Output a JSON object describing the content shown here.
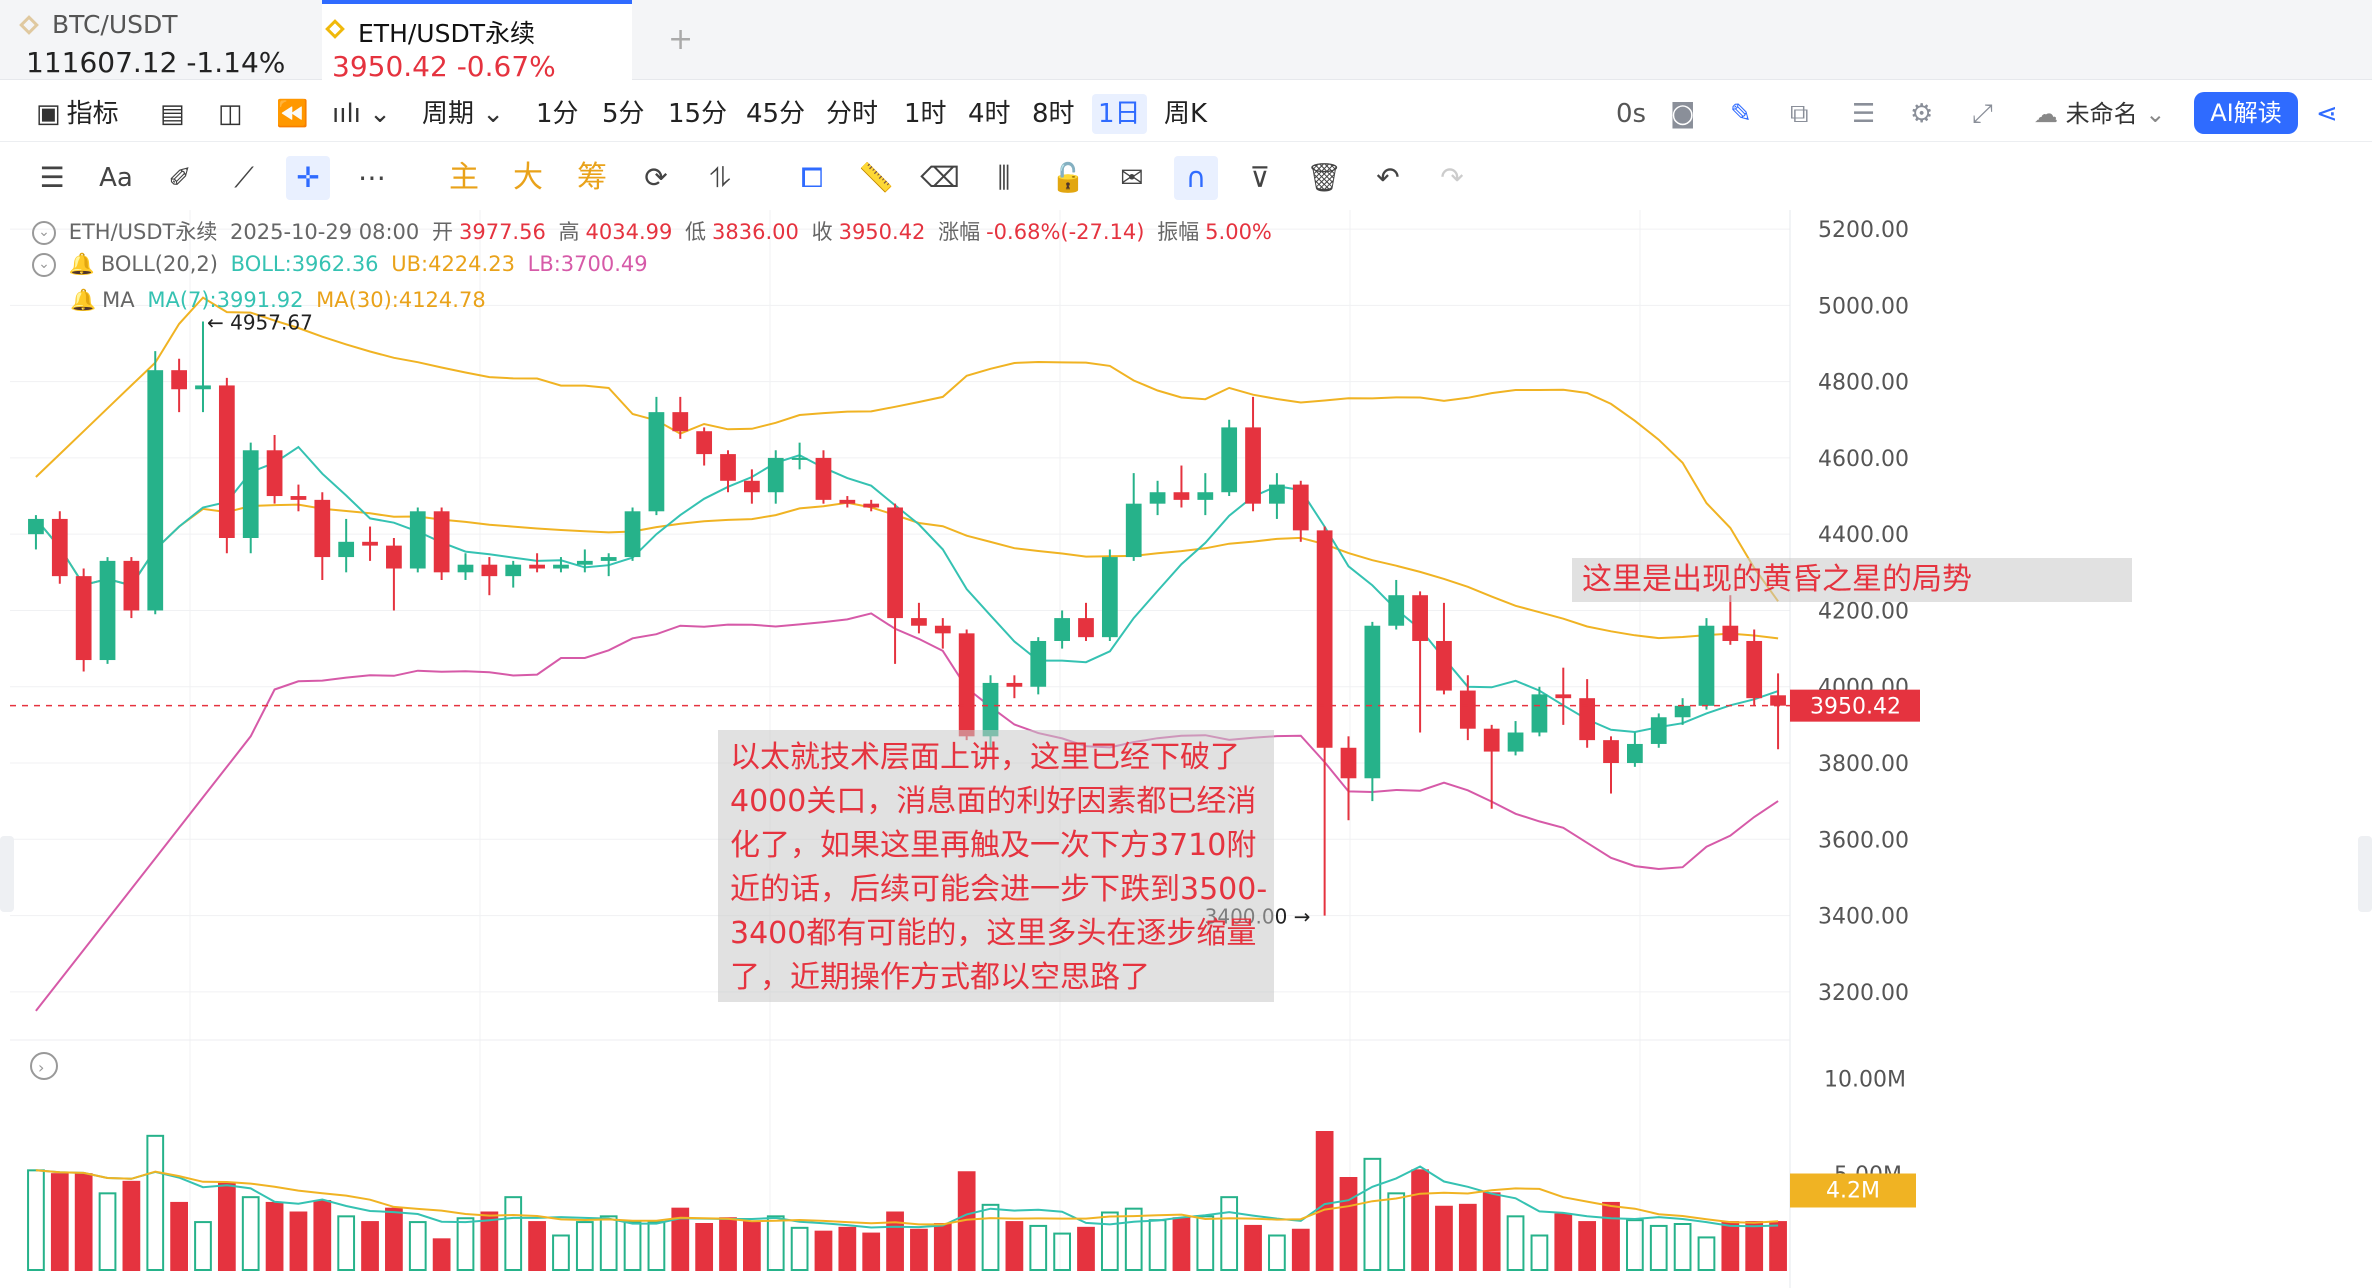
{
  "tabs": [
    {
      "symbol": "BTC/USDT",
      "price": "111607.12",
      "change": "-1.14%"
    },
    {
      "symbol": "ETH/USDT永续",
      "price": "3950.42",
      "change": "-0.67%"
    }
  ],
  "toolbar": {
    "indicators": "指标",
    "period": "周期",
    "intervals": [
      "1分",
      "5分",
      "15分",
      "45分",
      "分时",
      "1时",
      "4时",
      "8时",
      "1日",
      "周K"
    ],
    "active_interval": "1日",
    "countdown": "0s",
    "layout_name": "未命名",
    "ai_button": "AI解读"
  },
  "drawing_tools": {
    "main": "主",
    "big": "大",
    "chips": "筹"
  },
  "ohlc": {
    "symbol": "ETH/USDT永续",
    "date": "2025-10-29 08:00",
    "open_label": "开",
    "open": "3977.56",
    "high_label": "高",
    "high": "4034.99",
    "low_label": "低",
    "low": "3836.00",
    "close_label": "收",
    "close": "3950.42",
    "change_label": "涨幅",
    "change": "-0.68%(-27.14)",
    "amp_label": "振幅",
    "amp": "5.00%"
  },
  "boll": {
    "label": "BOLL(20,2)",
    "mid": "BOLL:3962.36",
    "ub": "UB:4224.23",
    "lb": "LB:3700.49"
  },
  "ma": {
    "label": "MA",
    "ma7": "MA(7):3991.92",
    "ma30": "MA(30):4124.78"
  },
  "price_axis": [
    "5200.00",
    "5000.00",
    "4800.00",
    "4600.00",
    "4400.00",
    "4200.00",
    "4000.00",
    "3800.00",
    "3600.00",
    "3400.00",
    "3200.00"
  ],
  "current_price_tag": "3950.42",
  "high_marker": "4957.67",
  "low_marker": "3400.00",
  "volume_axis": [
    "10.00M",
    "5.00M"
  ],
  "volume_tag": "4.2M",
  "annotations": {
    "main": "以太就技术层面上讲，这里已经下破了4000关口，消息面的利好因素都已经消化了，如果这里再触及一次下方3710附近的话，后续可能会进一步下跌到3500-3400都有可能的，这里多头在逐步缩量了，近期操作方式都以空思路了",
    "evening_star": "这里是出现的黄昏之星的局势"
  },
  "colors": {
    "up": "#26b28a",
    "down": "#e5333f",
    "boll_upper": "#f0b323",
    "boll_lower": "#d65aa8",
    "ma_fast": "#35c2b2",
    "accent": "#2f6bff"
  },
  "chart_data": {
    "type": "candlestick",
    "candles": [
      {
        "o": 4400,
        "h": 4450,
        "l": 4360,
        "c": 4440
      },
      {
        "o": 4440,
        "h": 4460,
        "l": 4270,
        "c": 4290
      },
      {
        "o": 4290,
        "h": 4310,
        "l": 4040,
        "c": 4070
      },
      {
        "o": 4070,
        "h": 4340,
        "l": 4060,
        "c": 4330
      },
      {
        "o": 4330,
        "h": 4340,
        "l": 4180,
        "c": 4200
      },
      {
        "o": 4200,
        "h": 4880,
        "l": 4190,
        "c": 4830
      },
      {
        "o": 4830,
        "h": 4860,
        "l": 4720,
        "c": 4780
      },
      {
        "o": 4780,
        "h": 4957.67,
        "l": 4720,
        "c": 4790
      },
      {
        "o": 4790,
        "h": 4810,
        "l": 4350,
        "c": 4390
      },
      {
        "o": 4390,
        "h": 4640,
        "l": 4350,
        "c": 4620
      },
      {
        "o": 4620,
        "h": 4660,
        "l": 4480,
        "c": 4500
      },
      {
        "o": 4500,
        "h": 4530,
        "l": 4460,
        "c": 4490
      },
      {
        "o": 4490,
        "h": 4510,
        "l": 4280,
        "c": 4340
      },
      {
        "o": 4340,
        "h": 4440,
        "l": 4300,
        "c": 4380
      },
      {
        "o": 4380,
        "h": 4420,
        "l": 4330,
        "c": 4370
      },
      {
        "o": 4370,
        "h": 4390,
        "l": 4200,
        "c": 4310
      },
      {
        "o": 4310,
        "h": 4470,
        "l": 4300,
        "c": 4460
      },
      {
        "o": 4460,
        "h": 4470,
        "l": 4280,
        "c": 4300
      },
      {
        "o": 4300,
        "h": 4350,
        "l": 4280,
        "c": 4320
      },
      {
        "o": 4320,
        "h": 4340,
        "l": 4240,
        "c": 4290
      },
      {
        "o": 4290,
        "h": 4330,
        "l": 4260,
        "c": 4320
      },
      {
        "o": 4320,
        "h": 4350,
        "l": 4300,
        "c": 4310
      },
      {
        "o": 4310,
        "h": 4340,
        "l": 4300,
        "c": 4320
      },
      {
        "o": 4320,
        "h": 4360,
        "l": 4300,
        "c": 4330
      },
      {
        "o": 4330,
        "h": 4350,
        "l": 4290,
        "c": 4340
      },
      {
        "o": 4340,
        "h": 4470,
        "l": 4330,
        "c": 4460
      },
      {
        "o": 4460,
        "h": 4760,
        "l": 4450,
        "c": 4720
      },
      {
        "o": 4720,
        "h": 4760,
        "l": 4650,
        "c": 4670
      },
      {
        "o": 4670,
        "h": 4680,
        "l": 4580,
        "c": 4610
      },
      {
        "o": 4610,
        "h": 4620,
        "l": 4510,
        "c": 4540
      },
      {
        "o": 4540,
        "h": 4570,
        "l": 4480,
        "c": 4510
      },
      {
        "o": 4510,
        "h": 4620,
        "l": 4480,
        "c": 4600
      },
      {
        "o": 4600,
        "h": 4640,
        "l": 4570,
        "c": 4600
      },
      {
        "o": 4600,
        "h": 4620,
        "l": 4480,
        "c": 4490
      },
      {
        "o": 4490,
        "h": 4500,
        "l": 4470,
        "c": 4480
      },
      {
        "o": 4480,
        "h": 4490,
        "l": 4460,
        "c": 4470
      },
      {
        "o": 4470,
        "h": 4480,
        "l": 4060,
        "c": 4180
      },
      {
        "o": 4180,
        "h": 4220,
        "l": 4140,
        "c": 4160
      },
      {
        "o": 4160,
        "h": 4180,
        "l": 4100,
        "c": 4140
      },
      {
        "o": 4140,
        "h": 4150,
        "l": 3860,
        "c": 3870
      },
      {
        "o": 3870,
        "h": 4030,
        "l": 3840,
        "c": 4010
      },
      {
        "o": 4010,
        "h": 4030,
        "l": 3970,
        "c": 4000
      },
      {
        "o": 4000,
        "h": 4130,
        "l": 3980,
        "c": 4120
      },
      {
        "o": 4120,
        "h": 4200,
        "l": 4100,
        "c": 4180
      },
      {
        "o": 4180,
        "h": 4220,
        "l": 4120,
        "c": 4130
      },
      {
        "o": 4130,
        "h": 4360,
        "l": 4120,
        "c": 4340
      },
      {
        "o": 4340,
        "h": 4560,
        "l": 4330,
        "c": 4480
      },
      {
        "o": 4480,
        "h": 4540,
        "l": 4450,
        "c": 4510
      },
      {
        "o": 4510,
        "h": 4580,
        "l": 4470,
        "c": 4490
      },
      {
        "o": 4490,
        "h": 4560,
        "l": 4450,
        "c": 4510
      },
      {
        "o": 4510,
        "h": 4700,
        "l": 4500,
        "c": 4680
      },
      {
        "o": 4680,
        "h": 4760,
        "l": 4460,
        "c": 4480
      },
      {
        "o": 4480,
        "h": 4560,
        "l": 4440,
        "c": 4530
      },
      {
        "o": 4530,
        "h": 4540,
        "l": 4380,
        "c": 4410
      },
      {
        "o": 4410,
        "h": 4420,
        "l": 3400,
        "c": 3840
      },
      {
        "o": 3840,
        "h": 3870,
        "l": 3650,
        "c": 3760
      },
      {
        "o": 3760,
        "h": 4170,
        "l": 3700,
        "c": 4160
      },
      {
        "o": 4160,
        "h": 4280,
        "l": 4150,
        "c": 4240
      },
      {
        "o": 4240,
        "h": 4250,
        "l": 3880,
        "c": 4120
      },
      {
        "o": 4120,
        "h": 4220,
        "l": 3980,
        "c": 3990
      },
      {
        "o": 3990,
        "h": 4030,
        "l": 3860,
        "c": 3890
      },
      {
        "o": 3890,
        "h": 3900,
        "l": 3680,
        "c": 3830
      },
      {
        "o": 3830,
        "h": 3910,
        "l": 3820,
        "c": 3880
      },
      {
        "o": 3880,
        "h": 4000,
        "l": 3870,
        "c": 3980
      },
      {
        "o": 3980,
        "h": 4050,
        "l": 3900,
        "c": 3970
      },
      {
        "o": 3970,
        "h": 4020,
        "l": 3840,
        "c": 3860
      },
      {
        "o": 3860,
        "h": 3870,
        "l": 3720,
        "c": 3800
      },
      {
        "o": 3800,
        "h": 3880,
        "l": 3790,
        "c": 3850
      },
      {
        "o": 3850,
        "h": 3930,
        "l": 3840,
        "c": 3920
      },
      {
        "o": 3920,
        "h": 3970,
        "l": 3900,
        "c": 3950
      },
      {
        "o": 3950,
        "h": 4180,
        "l": 3940,
        "c": 4160
      },
      {
        "o": 4160,
        "h": 4240,
        "l": 4110,
        "c": 4120
      },
      {
        "o": 4120,
        "h": 4150,
        "l": 3950,
        "c": 3970
      },
      {
        "o": 3977.56,
        "h": 4034.99,
        "l": 3836.0,
        "c": 3950.42
      }
    ],
    "volume": [
      5.2,
      5.0,
      5.0,
      4.0,
      4.6,
      7.0,
      3.5,
      2.5,
      4.5,
      3.8,
      3.5,
      3.0,
      3.6,
      2.8,
      2.5,
      3.2,
      2.5,
      1.6,
      2.7,
      3.0,
      3.8,
      2.5,
      1.8,
      2.5,
      2.8,
      2.5,
      2.5,
      3.2,
      2.4,
      2.7,
      2.5,
      2.8,
      2.2,
      2.0,
      2.2,
      1.9,
      3.0,
      2.1,
      2.4,
      5.1,
      3.4,
      2.5,
      2.3,
      1.9,
      2.2,
      3.0,
      3.2,
      2.6,
      2.7,
      2.8,
      3.8,
      2.3,
      1.8,
      2.1,
      7.2,
      4.8,
      5.8,
      4.0,
      5.2,
      3.3,
      3.4,
      4.0,
      2.8,
      1.8,
      2.9,
      2.5,
      3.5,
      2.6,
      2.3,
      2.4,
      1.7,
      2.5,
      2.5,
      2.5
    ],
    "boll_upper_start": [
      4540,
      4580,
      4620,
      4900,
      4900
    ],
    "y_range": [
      3100,
      5250
    ],
    "vol_range": [
      0,
      12
    ]
  }
}
